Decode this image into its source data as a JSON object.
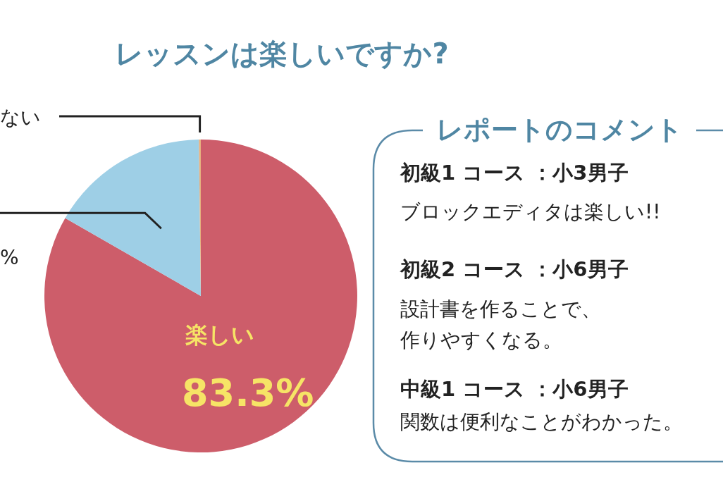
{
  "chart_data": [
    {
      "type": "pie",
      "title": "レッスンは楽しいですか?",
      "categories": [
        "楽しい",
        null,
        "ない"
      ],
      "values": [
        83.3,
        16.5,
        0.2
      ],
      "colors": [
        "#cd5d6a",
        "#9ecfe6",
        "#e6b07f"
      ],
      "value_labels": [
        "83.3%",
        null,
        null
      ],
      "annotations": [
        "%"
      ]
    },
    {
      "type": "other",
      "title": "レポートのコメント",
      "annotations": [
        "初級1 コース ：小3男子",
        "ブロックエディタは楽しい!!",
        "初級2 コース ：小6男子",
        "設計書を作ることで、",
        "作りやすくなる。",
        "中級1 コース ：小6男子",
        "関数は便利なことがわかった。"
      ]
    }
  ]
}
